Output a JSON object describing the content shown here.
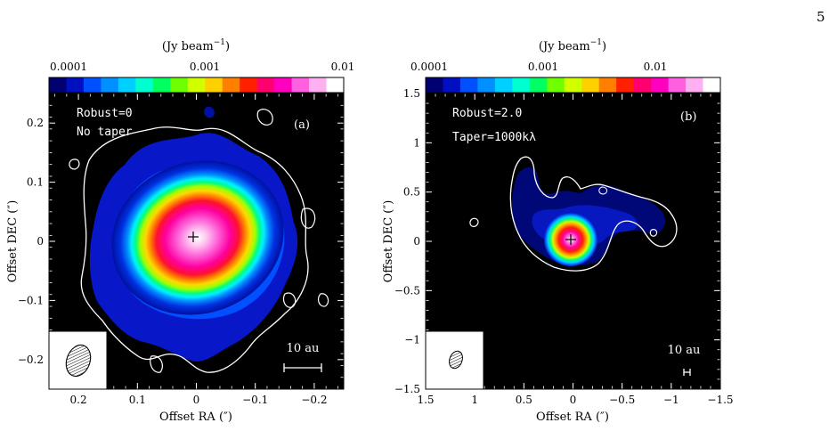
{
  "page_number": "5",
  "figure": {
    "panels": [
      {
        "id": "a",
        "panel_label": "(a)",
        "robust_label": "Robust=0",
        "taper_label": "No taper",
        "scale_label": "10 au",
        "colorbar": {
          "unit_label_main": "(Jy beam",
          "unit_label_exp": "−1",
          "unit_label_close": ")",
          "tick_labels": [
            "0.0001",
            "0.001",
            "0.01"
          ],
          "range": [
            0.0001,
            0.01
          ],
          "scale": "log"
        },
        "xlabel": "Offset RA (″)",
        "ylabel": "Offset DEC (″)",
        "x_ticks": [
          "0.2",
          "0.1",
          "0",
          "−0.1",
          "−0.2"
        ],
        "y_ticks": [
          "0.2",
          "0.1",
          "0",
          "−0.1",
          "−0.2"
        ],
        "x_range": [
          0.25,
          -0.25
        ],
        "y_range": [
          -0.25,
          0.25
        ],
        "centroid": [
          0.0,
          0.0
        ],
        "beam": {
          "major": 0.06,
          "minor": 0.045,
          "pa_deg": -20
        }
      },
      {
        "id": "b",
        "panel_label": "(b)",
        "robust_label": "Robust=2.0",
        "taper_label": "Taper=1000kλ",
        "scale_label": "10 au",
        "colorbar": {
          "unit_label_main": "(Jy beam",
          "unit_label_exp": "−1",
          "unit_label_close": ")",
          "tick_labels": [
            "0.0001",
            "0.001",
            "0.01"
          ],
          "range": [
            0.0001,
            0.05
          ],
          "scale": "log"
        },
        "xlabel": "Offset RA (″)",
        "ylabel": "Offset DEC (″)",
        "x_ticks": [
          "1.5",
          "1",
          "0.5",
          "0",
          "−0.5",
          "−1",
          "−1.5"
        ],
        "y_ticks": [
          "1.5",
          "1",
          "0.5",
          "0",
          "−0.5",
          "−1",
          "−1.5"
        ],
        "x_range": [
          1.5,
          -1.5
        ],
        "y_range": [
          -1.5,
          1.5
        ],
        "centroid": [
          0.0,
          0.0
        ],
        "beam": {
          "major": 0.17,
          "minor": 0.12,
          "pa_deg": -20
        }
      }
    ],
    "colormap": [
      "#000070",
      "#0010c0",
      "#0050ff",
      "#0090ff",
      "#00d0ff",
      "#00ffd0",
      "#00ff60",
      "#70ff00",
      "#d0ff00",
      "#ffd000",
      "#ff8000",
      "#ff2000",
      "#ff0070",
      "#ff00c0",
      "#ff60e0",
      "#ffb0f0",
      "#ffffff"
    ]
  }
}
